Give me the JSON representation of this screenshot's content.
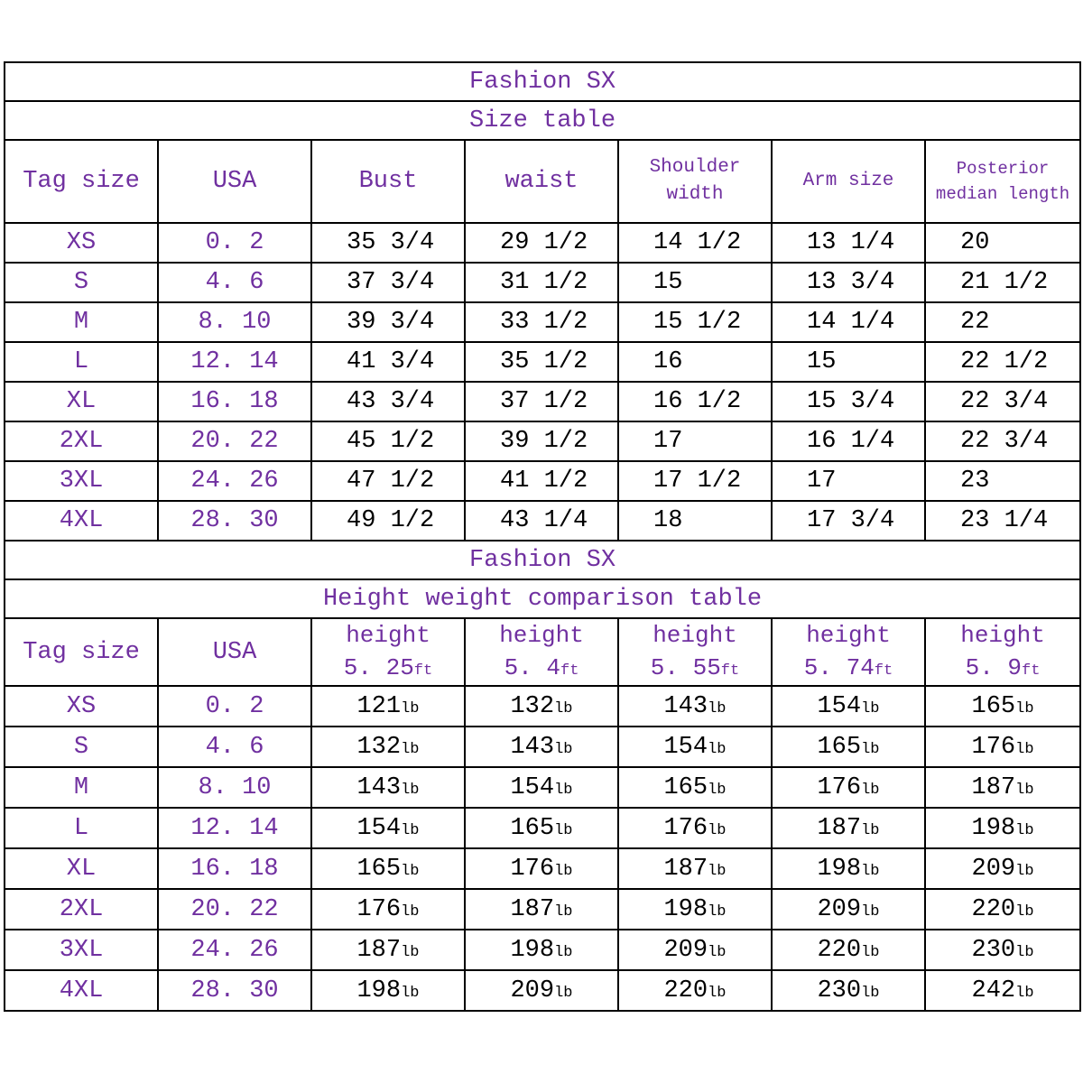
{
  "page": {
    "background": "#ffffff"
  },
  "colors": {
    "accent": "#7030A0",
    "text": "#000000",
    "border": "#000000"
  },
  "chart_data": [
    {
      "type": "table",
      "title": "Fashion SX",
      "subtitle": "Size table",
      "columns": [
        {
          "label": "Tag size",
          "size": "lg"
        },
        {
          "label": "USA",
          "size": "lg"
        },
        {
          "label": "Bust",
          "size": "lg"
        },
        {
          "label": "waist",
          "size": "lg"
        },
        {
          "label": "Shoulder width",
          "size": "md"
        },
        {
          "label": "Arm size",
          "size": "md"
        },
        {
          "label": "Posterior median length",
          "size": "sm"
        }
      ],
      "rows": [
        [
          "XS",
          "0. 2",
          "35 3/4",
          "29 1/2",
          "14 1/2",
          "13 1/4",
          "20"
        ],
        [
          "S",
          "4. 6",
          "37 3/4",
          "31 1/2",
          "15",
          "13 3/4",
          "21 1/2"
        ],
        [
          "M",
          "8. 10",
          "39 3/4",
          "33 1/2",
          "15 1/2",
          "14 1/4",
          "22"
        ],
        [
          "L",
          "12. 14",
          "41 3/4",
          "35 1/2",
          "16",
          "15",
          "22 1/2"
        ],
        [
          "XL",
          "16. 18",
          "43 3/4",
          "37 1/2",
          "16 1/2",
          "15 3/4",
          "22 3/4"
        ],
        [
          "2XL",
          "20. 22",
          "45 1/2",
          "39 1/2",
          "17",
          "16 1/4",
          "22 3/4"
        ],
        [
          "3XL",
          "24. 26",
          "47 1/2",
          "41 1/2",
          "17 1/2",
          "17",
          "23"
        ],
        [
          "4XL",
          "28. 30",
          "49 1/2",
          "43 1/4",
          "18",
          "17 3/4",
          "23 1/4"
        ]
      ]
    },
    {
      "type": "table",
      "title": "Fashion SX",
      "subtitle": "Height weight comparison table",
      "height_unit": "ft",
      "weight_unit": "lb",
      "columns": [
        {
          "label": "Tag size",
          "size": "lg"
        },
        {
          "label": "USA",
          "size": "lg"
        },
        {
          "label": "height",
          "value": "5. 25",
          "size": "height"
        },
        {
          "label": "height",
          "value": "5. 4",
          "size": "height"
        },
        {
          "label": "height",
          "value": "5. 55",
          "size": "height"
        },
        {
          "label": "height",
          "value": "5. 74",
          "size": "height"
        },
        {
          "label": "height",
          "value": "5. 9",
          "size": "height"
        }
      ],
      "rows": [
        [
          "XS",
          "0. 2",
          "121",
          "132",
          "143",
          "154",
          "165"
        ],
        [
          "S",
          "4. 6",
          "132",
          "143",
          "154",
          "165",
          "176"
        ],
        [
          "M",
          "8. 10",
          "143",
          "154",
          "165",
          "176",
          "187"
        ],
        [
          "L",
          "12. 14",
          "154",
          "165",
          "176",
          "187",
          "198"
        ],
        [
          "XL",
          "16. 18",
          "165",
          "176",
          "187",
          "198",
          "209"
        ],
        [
          "2XL",
          "20. 22",
          "176",
          "187",
          "198",
          "209",
          "220"
        ],
        [
          "3XL",
          "24. 26",
          "187",
          "198",
          "209",
          "220",
          "230"
        ],
        [
          "4XL",
          "28. 30",
          "198",
          "209",
          "220",
          "230",
          "242"
        ]
      ]
    }
  ]
}
